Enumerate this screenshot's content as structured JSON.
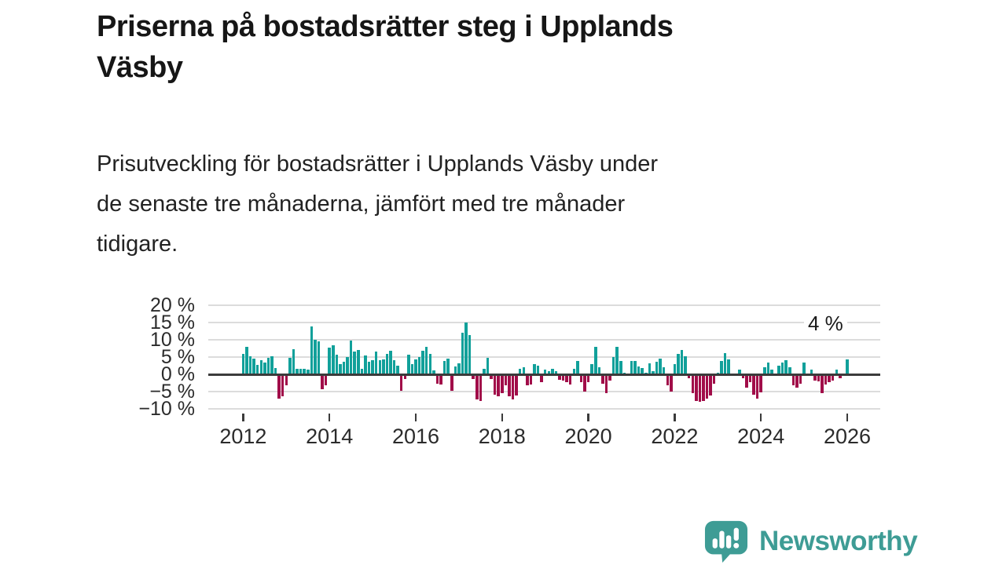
{
  "header": {
    "title": "Priserna på bostadsrätter steg i Upplands Väsby",
    "title_lines": [
      "Priserna på bostadsrätter steg i Upplands",
      "Väsby"
    ],
    "subtitle": "Prisutveckling för bostadsrätter i Upplands Väsby under de senaste tre månaderna, jämfört med tre månader tidigare.",
    "subtitle_lines": [
      "Prisutveckling för bostadsrätter i Upplands Väsby under",
      "de senaste tre månaderna, jämfört med tre månader",
      "tidigare."
    ]
  },
  "chart_data": {
    "type": "bar",
    "title": "",
    "xlabel": "",
    "ylabel": "",
    "frequency": "monthly",
    "start_year": 2012,
    "start_month": 1,
    "values": [
      6.0,
      8.0,
      5.2,
      4.5,
      2.8,
      4.0,
      3.3,
      4.7,
      5.2,
      1.9,
      -6.6,
      -6.0,
      -2.9,
      4.7,
      7.3,
      1.7,
      1.5,
      1.7,
      1.3,
      13.9,
      10.0,
      9.6,
      -4.0,
      -2.9,
      7.8,
      8.4,
      5.6,
      3.0,
      3.6,
      5.0,
      9.8,
      6.5,
      7.1,
      1.6,
      5.5,
      3.6,
      4.0,
      6.7,
      4.2,
      4.4,
      5.8,
      6.8,
      4.0,
      2.6,
      -4.4,
      -1.1,
      5.7,
      2.9,
      4.4,
      5.0,
      6.9,
      7.9,
      5.8,
      1.1,
      -2.3,
      -2.7,
      3.8,
      4.5,
      -4.5,
      2.2,
      3.1,
      12.0,
      15.1,
      11.4,
      -1.0,
      -6.9,
      -7.3,
      1.6,
      4.7,
      -1.0,
      -5.6,
      -6.0,
      -5.2,
      -2.9,
      -6.0,
      -6.9,
      -5.8,
      1.6,
      2.0,
      -2.9,
      -2.6,
      3.0,
      2.5,
      -2.0,
      1.3,
      1.0,
      1.7,
      1.0,
      -1.3,
      -1.5,
      -2.0,
      -2.5,
      1.6,
      3.8,
      -2.0,
      -4.7,
      -2.0,
      2.9,
      7.9,
      2.0,
      -2.3,
      -5.2,
      -1.4,
      5.0,
      7.9,
      3.8,
      0.5,
      0.3,
      3.8,
      3.8,
      2.3,
      1.8,
      0.4,
      3.1,
      1.0,
      3.6,
      4.5,
      2.0,
      -2.9,
      -4.7,
      2.9,
      5.8,
      7.1,
      5.2,
      -0.8,
      -5.2,
      -7.3,
      -7.6,
      -7.3,
      -6.7,
      -5.8,
      -2.3,
      0.5,
      3.8,
      6.1,
      4.3,
      0.3,
      0.2,
      1.4,
      -0.8,
      -3.6,
      -2.0,
      -5.6,
      -6.7,
      -4.9,
      2.0,
      3.3,
      1.4,
      0.3,
      2.6,
      3.3,
      4.0,
      2.0,
      -2.9,
      -3.6,
      -2.3,
      3.3,
      0.2,
      1.4,
      -1.5,
      -1.8,
      -5.1,
      -2.5,
      -2.0,
      -1.5,
      1.4,
      -0.8,
      0.2,
      4.3
    ],
    "yticks": [
      "20 %",
      "15 %",
      "10 %",
      "5 %",
      "0 %",
      "−5 %",
      "−10 %"
    ],
    "ytick_values": [
      20,
      15,
      10,
      5,
      0,
      -5,
      -10
    ],
    "xticks": [
      2012,
      2014,
      2016,
      2018,
      2020,
      2022,
      2024,
      2026
    ],
    "ylim": [
      -10,
      20
    ],
    "xlim": [
      2011.2,
      2026.8
    ],
    "grid": true,
    "legend": false,
    "annotation": {
      "text": "4 %",
      "value": 4.3
    },
    "colors": {
      "positive": "#11a09a",
      "negative": "#a10d49",
      "grid": "#dcdcdc",
      "axis": "#3b3b3b"
    }
  },
  "footer": {
    "brand": "Newsworthy",
    "brand_color": "#3e9c95"
  }
}
